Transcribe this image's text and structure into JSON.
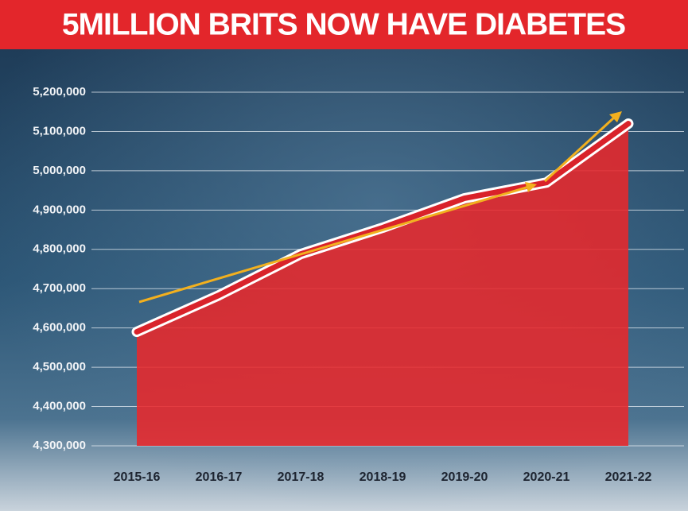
{
  "chart_data": {
    "type": "area",
    "title": "5MILLION BRITS NOW HAVE DIABETES",
    "categories": [
      "2015-16",
      "2016-17",
      "2017-18",
      "2018-19",
      "2019-20",
      "2020-21",
      "2021-22"
    ],
    "values": [
      4590000,
      4683000,
      4788000,
      4855000,
      4930000,
      4970000,
      5120000
    ],
    "color": "#e8282b",
    "ylim": [
      4300000,
      5200000
    ],
    "yticks": [
      {
        "value": 4300000,
        "label": "4,300,000"
      },
      {
        "value": 4400000,
        "label": "4,400,000"
      },
      {
        "value": 4500000,
        "label": "4,500,000"
      },
      {
        "value": 4600000,
        "label": "4,600,000"
      },
      {
        "value": 4700000,
        "label": "4,700,000"
      },
      {
        "value": 4800000,
        "label": "4,800,000"
      },
      {
        "value": 4900000,
        "label": "4,900,000"
      },
      {
        "value": 5000000,
        "label": "5,000,000"
      },
      {
        "value": 5100000,
        "label": "5,100,000"
      },
      {
        "value": 5200000,
        "label": "5,200,000"
      }
    ],
    "grid": true
  }
}
